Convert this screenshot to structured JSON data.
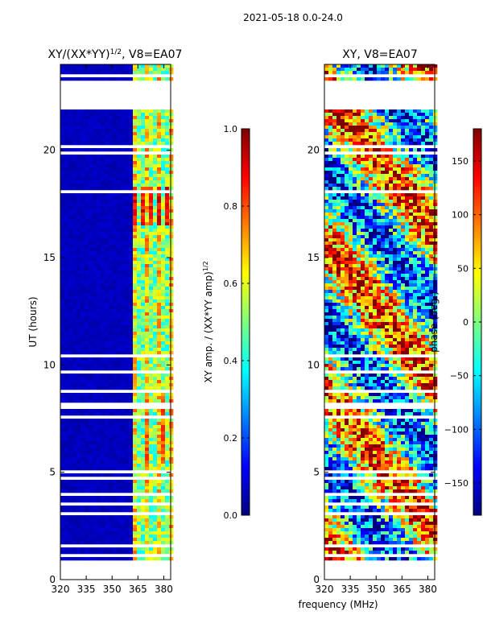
{
  "suptitle": "2021-05-18 0.0-24.0",
  "common_xlabel": "frequency (MHz)",
  "colors": {
    "background": "#ffffff",
    "axis": "#000000",
    "jet_stops": [
      "#00007f",
      "#0000ff",
      "#007fff",
      "#00ffff",
      "#7fff7f",
      "#ffff00",
      "#ff7f00",
      "#ff0000",
      "#7f0000"
    ]
  },
  "chart_data": [
    {
      "type": "heatmap",
      "id": "amp",
      "title": "XY/(XX*YY)",
      "title_sup": "1/2",
      "title_suffix": ", V8=EA07",
      "ylabel": "UT (hours)",
      "xlim": [
        320,
        384
      ],
      "ylim": [
        0,
        24
      ],
      "xticks": [
        320,
        335,
        350,
        365,
        380
      ],
      "xtick_labels": [
        "320",
        "335",
        "350",
        "365",
        "380"
      ],
      "yticks": [
        0,
        5,
        10,
        15,
        20
      ],
      "ytick_labels": [
        "0",
        "5",
        "10",
        "15",
        "20"
      ],
      "colorbar": {
        "label": "XY amp. / (XX*YY amp)",
        "label_sup": "1/2",
        "range": [
          0.0,
          1.0
        ],
        "ticks": [
          0.0,
          0.2,
          0.4,
          0.6,
          0.8,
          1.0
        ],
        "tick_labels": [
          "0.0",
          "0.2",
          "0.4",
          "0.6",
          "0.8",
          "1.0"
        ]
      },
      "data_time_range_hours": [
        1.0,
        24.0
      ],
      "gap_hours": [
        [
          21.9,
          23.0
        ]
      ],
      "description_bands_mhz": [
        {
          "from": 320,
          "to": 362,
          "level": 0.05
        },
        {
          "from": 362,
          "to": 384,
          "level": 0.55
        }
      ]
    },
    {
      "type": "heatmap",
      "id": "phase",
      "title": "XY, V8=EA07",
      "xlim": [
        320,
        384
      ],
      "ylim": [
        0,
        24
      ],
      "xticks": [
        320,
        335,
        350,
        365,
        380
      ],
      "xtick_labels": [
        "320",
        "335",
        "350",
        "365",
        "380"
      ],
      "yticks": [
        0,
        5,
        10,
        15,
        20
      ],
      "ytick_labels": [
        "0",
        "5",
        "10",
        "15",
        "20"
      ],
      "colorbar": {
        "label": "phase (deg.)",
        "range": [
          -180,
          180
        ],
        "ticks": [
          -150,
          -100,
          -50,
          0,
          50,
          100,
          150
        ],
        "tick_labels": [
          "−150",
          "−100",
          "−50",
          "0",
          "50",
          "100",
          "150"
        ]
      },
      "data_time_range_hours": [
        1.0,
        24.0
      ],
      "gap_hours": [
        [
          21.9,
          23.0
        ]
      ]
    }
  ]
}
